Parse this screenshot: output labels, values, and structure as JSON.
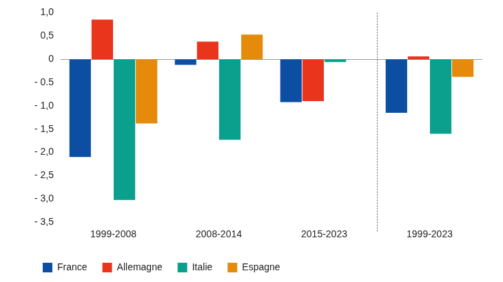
{
  "chart_data": {
    "type": "bar",
    "categories": [
      "1999-2008",
      "2008-2014",
      "2015-2023",
      "1999-2023"
    ],
    "series": [
      {
        "name": "France",
        "color": "#0b4ea2",
        "values": [
          -2.1,
          -0.12,
          -0.92,
          -1.15
        ]
      },
      {
        "name": "Allemagne",
        "color": "#e8351c",
        "values": [
          0.85,
          0.38,
          -0.9,
          0.06
        ]
      },
      {
        "name": "Italie",
        "color": "#0ba08d",
        "values": [
          -3.02,
          -1.73,
          -0.06,
          -1.6
        ]
      },
      {
        "name": "Espagne",
        "color": "#e68a0c",
        "values": [
          -1.38,
          0.53,
          null,
          -0.38
        ]
      }
    ],
    "ylim": [
      -3.5,
      1.0
    ],
    "yticks": [
      {
        "value": 1.0,
        "label": "1,0"
      },
      {
        "value": 0.5,
        "label": "0,5"
      },
      0,
      {
        "value": -0.5,
        "label": "- 0.5"
      },
      {
        "value": -1.0,
        "label": "- 1,0"
      },
      {
        "value": -1.5,
        "label": "- 1,5"
      },
      {
        "value": -2.0,
        "label": "- 2,0"
      },
      {
        "value": -2.5,
        "label": "- 2,5"
      },
      {
        "value": -3.0,
        "label": "- 3,0"
      },
      {
        "value": -3.5,
        "label": "- 3,5"
      }
    ],
    "grid": false,
    "legend": "bottom"
  }
}
